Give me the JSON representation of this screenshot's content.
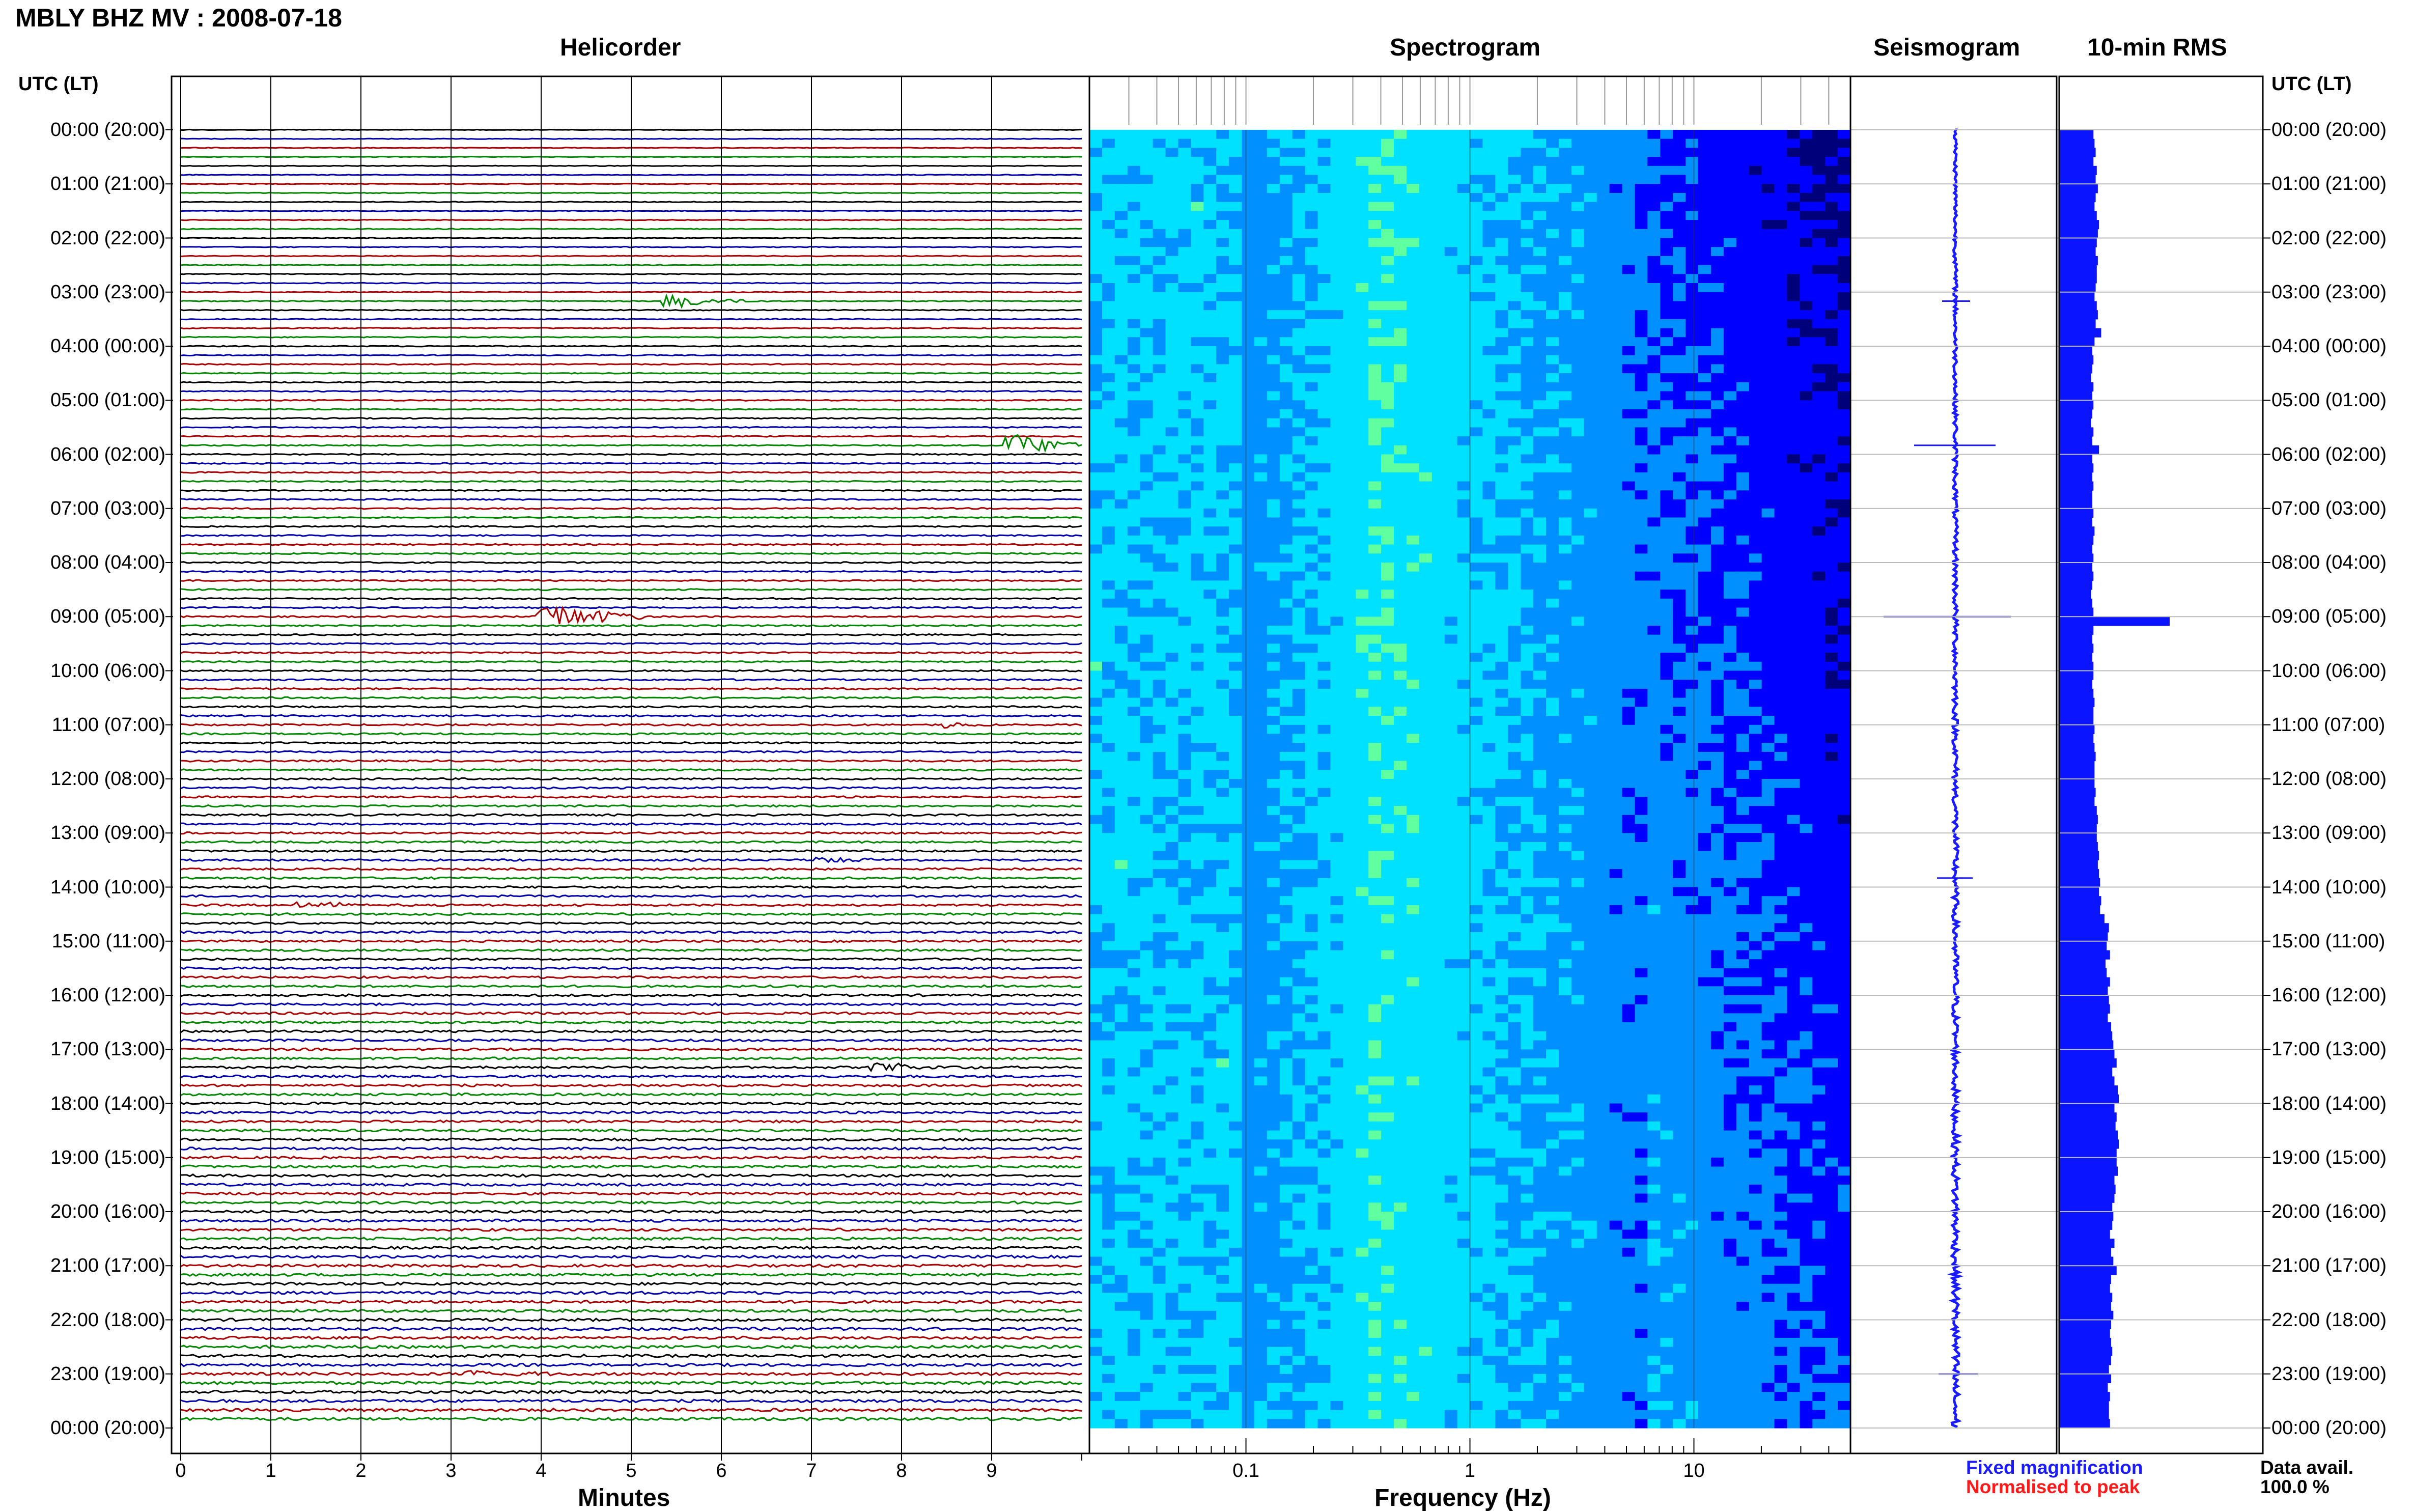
{
  "header": {
    "title": "MBLY BHZ MV : 2008-07-18"
  },
  "panels": {
    "helicorder": "Helicorder",
    "spectrogram": "Spectrogram",
    "seismogram": "Seismogram",
    "rms": "10-min RMS"
  },
  "axis": {
    "left_head": "UTC (LT)",
    "right_head": "UTC (LT)",
    "time_labels": [
      "00:00 (20:00)",
      "01:00 (21:00)",
      "02:00 (22:00)",
      "03:00 (23:00)",
      "04:00 (00:00)",
      "05:00 (01:00)",
      "06:00 (02:00)",
      "07:00 (03:00)",
      "08:00 (04:00)",
      "09:00 (05:00)",
      "10:00 (06:00)",
      "11:00 (07:00)",
      "12:00 (08:00)",
      "13:00 (09:00)",
      "14:00 (10:00)",
      "15:00 (11:00)",
      "16:00 (12:00)",
      "17:00 (13:00)",
      "18:00 (14:00)",
      "19:00 (15:00)",
      "20:00 (16:00)",
      "21:00 (17:00)",
      "22:00 (18:00)",
      "23:00 (19:00)",
      "00:00 (20:00)"
    ],
    "minutes_label": "Minutes",
    "minute_ticks": [
      "0",
      "1",
      "2",
      "3",
      "4",
      "5",
      "6",
      "7",
      "8",
      "9"
    ],
    "frequency_label": "Frequency (Hz)",
    "frequency_ticks": [
      "0.1",
      "1",
      "10"
    ]
  },
  "legend": {
    "fixed": "Fixed magnification",
    "normalised": "Normalised to peak",
    "fixed_color": "#1a1aff",
    "normalised_color": "#ff1a1a"
  },
  "availability": {
    "label": "Data avail.",
    "value": "100.0 %"
  },
  "colors": {
    "trace_cycle": [
      "#000000",
      "#0000aa",
      "#aa0000",
      "#008800"
    ],
    "rms_bar": "#0a14ff",
    "seismo": "#1a1aff"
  },
  "chart_data": {
    "type": "heatmap",
    "helicorder": {
      "rows": 144,
      "row_minutes": 10,
      "xlim": [
        0,
        10
      ],
      "events": [
        {
          "utc": "03:10",
          "minute": 5.4,
          "amp": 0.5
        },
        {
          "utc": "05:50",
          "minute": 9.2,
          "amp": 0.8
        },
        {
          "utc": "09:00",
          "minute": 4.0,
          "amp": 1.0
        },
        {
          "utc": "11:00",
          "minute": 8.5,
          "amp": 0.2
        },
        {
          "utc": "13:30",
          "minute": 7.1,
          "amp": 0.25
        },
        {
          "utc": "14:20",
          "minute": 1.3,
          "amp": 0.3
        },
        {
          "utc": "17:20",
          "minute": 7.7,
          "amp": 0.35
        },
        {
          "utc": "23:00",
          "minute": 3.2,
          "amp": 0.35
        }
      ]
    },
    "spectrogram": {
      "xscale": "log",
      "xlim": [
        0.02,
        50
      ],
      "peak_band_hz": [
        0.25,
        0.5
      ],
      "colormap": [
        "#00007a",
        "#0000ff",
        "#0090ff",
        "#00e0ff",
        "#60ffa0",
        "#e0ff40"
      ]
    },
    "rms": {
      "interval_minutes": 10,
      "values": [
        0.31,
        0.32,
        0.33,
        0.31,
        0.34,
        0.33,
        0.35,
        0.33,
        0.32,
        0.34,
        0.36,
        0.35,
        0.34,
        0.33,
        0.35,
        0.34,
        0.34,
        0.33,
        0.32,
        0.34,
        0.35,
        0.33,
        0.38,
        0.32,
        0.3,
        0.31,
        0.3,
        0.29,
        0.31,
        0.3,
        0.31,
        0.3,
        0.29,
        0.31,
        0.3,
        0.36,
        0.3,
        0.31,
        0.3,
        0.31,
        0.3,
        0.3,
        0.31,
        0.3,
        0.32,
        0.31,
        0.3,
        0.31,
        0.3,
        0.31,
        0.3,
        0.29,
        0.3,
        0.31,
        1.0,
        0.31,
        0.3,
        0.31,
        0.3,
        0.31,
        0.31,
        0.3,
        0.31,
        0.32,
        0.31,
        0.31,
        0.32,
        0.31,
        0.32,
        0.33,
        0.32,
        0.32,
        0.32,
        0.33,
        0.32,
        0.34,
        0.35,
        0.34,
        0.34,
        0.35,
        0.36,
        0.35,
        0.36,
        0.37,
        0.36,
        0.38,
        0.37,
        0.41,
        0.45,
        0.44,
        0.43,
        0.46,
        0.42,
        0.43,
        0.46,
        0.44,
        0.45,
        0.46,
        0.44,
        0.47,
        0.48,
        0.49,
        0.5,
        0.52,
        0.48,
        0.5,
        0.53,
        0.54,
        0.5,
        0.52,
        0.51,
        0.53,
        0.54,
        0.52,
        0.52,
        0.53,
        0.5,
        0.51,
        0.5,
        0.48,
        0.49,
        0.48,
        0.46,
        0.5,
        0.47,
        0.49,
        0.52,
        0.47,
        0.46,
        0.48,
        0.47,
        0.49,
        0.47,
        0.46,
        0.47,
        0.48,
        0.47,
        0.45,
        0.47,
        0.44,
        0.46,
        0.45,
        0.45,
        0.46
      ]
    }
  }
}
